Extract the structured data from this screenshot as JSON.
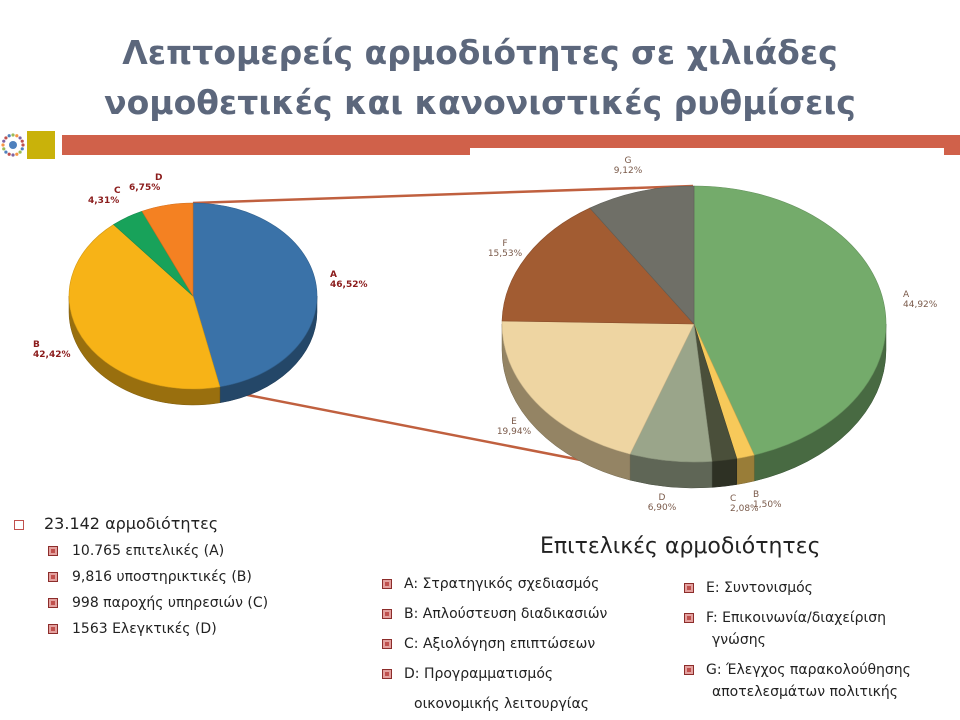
{
  "title": {
    "line1": "Λεπτομερείς αρμοδιότητες σε χιλιάδες",
    "line2": "νομοθετικές και κανονιστικές ρυθμίσεις"
  },
  "colors": {
    "title": "#5c677c",
    "accent_bar": "#d0614a",
    "accent_square": "#c9b20a",
    "bullet": "#c0504d"
  },
  "chart_data": [
    {
      "type": "pie",
      "style": "3d",
      "slices": [
        {
          "label": "A",
          "value": 46.52,
          "display": "46,52%",
          "color": "#3a72a8"
        },
        {
          "label": "B",
          "value": 42.42,
          "display": "42,42%",
          "color": "#f7b317"
        },
        {
          "label": "C",
          "value": 4.31,
          "display": "4,31%",
          "color": "#18a25a"
        },
        {
          "label": "D",
          "value": 6.75,
          "display": "6,75%",
          "color": "#f48122"
        }
      ]
    },
    {
      "type": "pie",
      "style": "3d",
      "title": "Επιτελικές αρμοδιότητες",
      "slices": [
        {
          "label": "A",
          "value": 44.92,
          "display": "44,92%",
          "color": "#74ab6b"
        },
        {
          "label": "B",
          "value": 1.5,
          "display": "1,50%",
          "color": "#f7c95a"
        },
        {
          "label": "C",
          "value": 2.08,
          "display": "2,08%",
          "color": "#4a4f3a"
        },
        {
          "label": "D",
          "value": 6.9,
          "display": "6,90%",
          "color": "#9aa58a"
        },
        {
          "label": "E",
          "value": 19.94,
          "display": "19,94%",
          "color": "#eed5a2"
        },
        {
          "label": "F",
          "value": 15.53,
          "display": "15,53%",
          "color": "#a25c32"
        },
        {
          "label": "G",
          "value": 9.12,
          "display": "9,12%",
          "color": "#6f6f67"
        }
      ]
    }
  ],
  "summary": {
    "total": "23.142 αρμοδιότητες",
    "items": [
      "10.765 επιτελικές (A)",
      "9,816 υποστηρικτικές (B)",
      "998 παροχής υπηρεσιών (C)",
      "1563 Ελεγκτικές (D)"
    ]
  },
  "legend_left": [
    "A: Στρατηγικός σχεδιασμός",
    "B: Απλούστευση διαδικασιών",
    "C: Αξιολόγηση επιπτώσεων",
    "D: Προγραμματισμός",
    "οικονομικής λειτουργίας"
  ],
  "legend_right": [
    "E: Συντονισμός",
    "F: Επικοινωνία/διαχείριση",
    "γνώσης",
    "G: Έλεγχος παρακολούθησης",
    "αποτελεσμάτων πολιτικής"
  ]
}
